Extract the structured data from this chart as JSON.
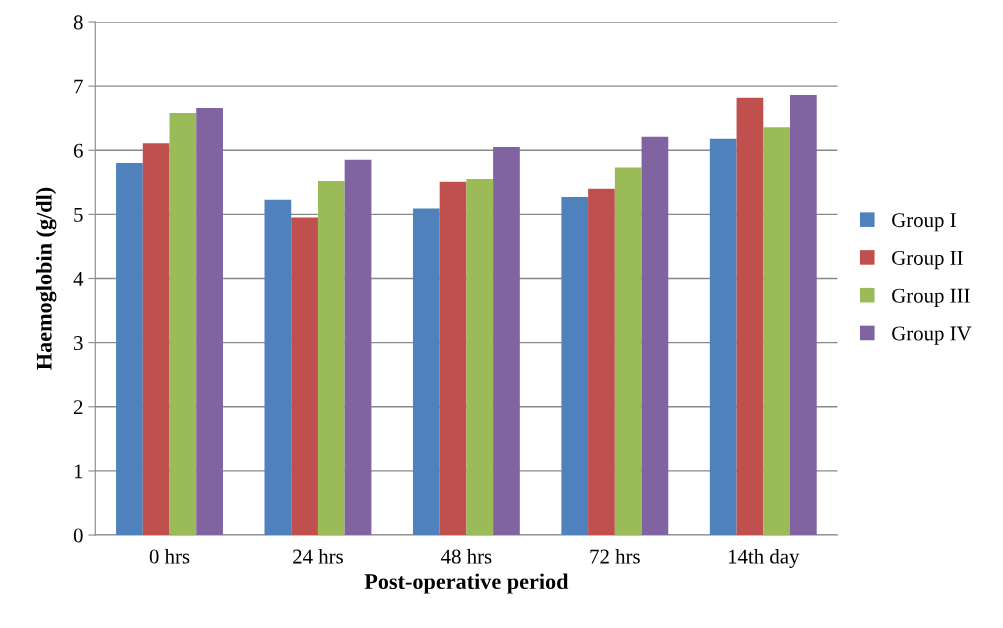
{
  "chart_data": {
    "type": "bar",
    "xlabel": "Post-operative period",
    "ylabel": "Haemoglobin (g/dl)",
    "categories": [
      "0 hrs",
      "24 hrs",
      "48 hrs",
      "72 hrs",
      "14th day"
    ],
    "series": [
      {
        "name": "Group I",
        "color": "#4f81bd",
        "values": [
          5.8,
          5.23,
          5.09,
          5.27,
          6.18
        ]
      },
      {
        "name": "Group II",
        "color": "#c0504d",
        "values": [
          6.11,
          4.95,
          5.51,
          5.4,
          6.82
        ]
      },
      {
        "name": "Group III",
        "color": "#9bbb59",
        "values": [
          6.58,
          5.52,
          5.55,
          5.73,
          6.36
        ]
      },
      {
        "name": "Group IV",
        "color": "#8064a2",
        "values": [
          6.66,
          5.85,
          6.05,
          6.21,
          6.86
        ]
      }
    ],
    "ylim": [
      0,
      8
    ],
    "yticks": [
      0,
      1,
      2,
      3,
      4,
      5,
      6,
      7,
      8
    ],
    "grid": "y",
    "legend": "right"
  }
}
